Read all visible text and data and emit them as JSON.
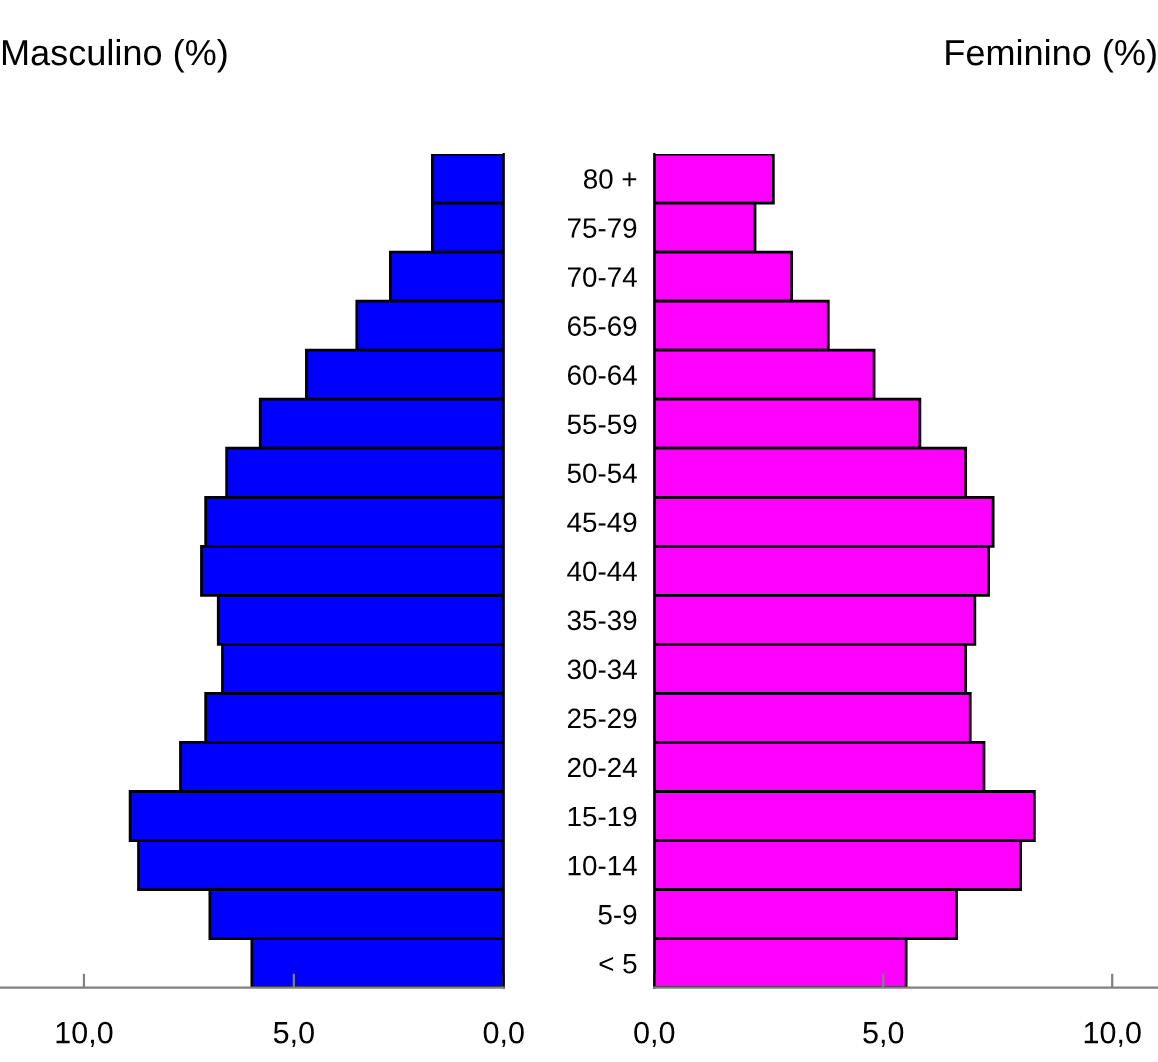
{
  "chart_data": [
    {
      "type": "bar",
      "orientation": "horizontal",
      "title": "Masculino (%)",
      "tick_labels": "x",
      "categories": [
        null,
        null,
        null,
        null,
        null,
        null,
        null,
        null,
        null,
        null,
        null,
        null,
        null,
        null,
        null,
        null,
        null
      ],
      "values": [
        1.7,
        1.7,
        2.7,
        3.5,
        4.7,
        5.8,
        6.6,
        7.1,
        7.2,
        6.8,
        6.7,
        7.1,
        7.7,
        8.9,
        8.7,
        7.0,
        6.0
      ],
      "color": "#0000ff",
      "xlim": [
        12,
        0
      ],
      "xticks": [
        {
          "value": 10,
          "label": "10,0"
        },
        {
          "value": 5,
          "label": "5,0"
        },
        {
          "value": 0,
          "label": "0,0"
        }
      ],
      "grid": false
    },
    {
      "type": "bar",
      "orientation": "horizontal",
      "title": "Feminino (%)",
      "categories": [
        "80 +",
        "75-79",
        "70-74",
        "65-69",
        "60-64",
        "55-59",
        "50-54",
        "45-49",
        "40-44",
        "35-39",
        "30-34",
        "25-29",
        "20-24",
        "15-19",
        "10-14",
        "5-9",
        "< 5"
      ],
      "values": [
        2.6,
        2.2,
        3.0,
        3.8,
        4.8,
        5.8,
        6.8,
        7.4,
        7.3,
        7.0,
        6.8,
        6.9,
        7.2,
        8.3,
        8.0,
        6.6,
        5.5
      ],
      "color": "#ff00ff",
      "xlim": [
        0,
        11
      ],
      "xticks": [
        {
          "value": 0,
          "label": "0,0"
        },
        {
          "value": 5,
          "label": "5,0"
        },
        {
          "value": 10,
          "label": "10,0"
        }
      ],
      "grid": false
    }
  ]
}
